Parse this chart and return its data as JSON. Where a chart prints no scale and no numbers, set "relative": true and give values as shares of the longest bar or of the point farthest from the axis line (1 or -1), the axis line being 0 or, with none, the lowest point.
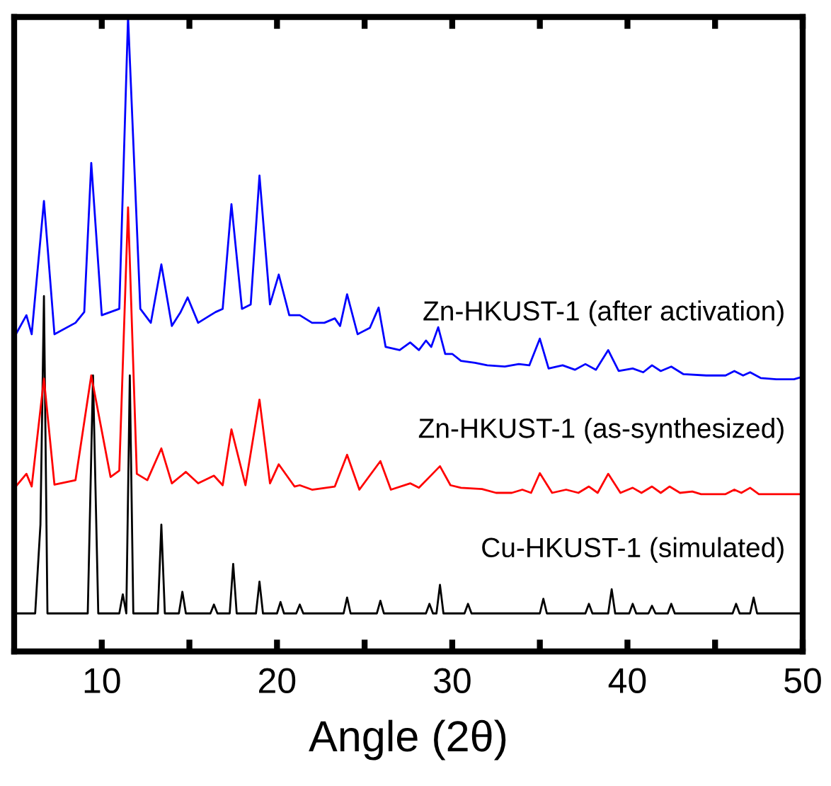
{
  "chart_data": {
    "type": "line",
    "relative": true,
    "xlabel": "Angle (2θ)",
    "xlim": [
      5,
      50
    ],
    "xticks": [
      10,
      {
        "value": 15,
        "label": null
      },
      20,
      {
        "value": 25,
        "label": null
      },
      30,
      {
        "value": 35,
        "label": null
      },
      40,
      {
        "value": 45,
        "label": null
      },
      50
    ],
    "tick_labels": "x",
    "grid": false,
    "legend": false,
    "marker": "none",
    "line_style": "solid",
    "series": [
      {
        "name": "Cu-HKUST-1 (simulated)",
        "color": "#000000",
        "x": [
          5,
          6.2,
          6.5,
          6.7,
          6.9,
          9.2,
          9.5,
          9.8,
          11.0,
          11.2,
          11.4,
          11.6,
          11.8,
          13.2,
          13.4,
          13.6,
          14.4,
          14.6,
          14.8,
          16.2,
          16.4,
          16.6,
          17.3,
          17.5,
          17.7,
          18.8,
          19.0,
          19.2,
          20.0,
          20.2,
          20.4,
          21.1,
          21.3,
          21.5,
          23.8,
          24.0,
          24.2,
          25.7,
          25.9,
          26.1,
          28.5,
          28.7,
          28.9,
          29.1,
          29.3,
          29.5,
          30.7,
          30.9,
          31.1,
          35.0,
          35.2,
          35.4,
          37.6,
          37.8,
          38.0,
          38.9,
          39.1,
          39.3,
          40.1,
          40.3,
          40.5,
          41.2,
          41.4,
          41.6,
          42.3,
          42.5,
          42.7,
          46.0,
          46.2,
          46.4,
          47.0,
          47.2,
          47.4,
          50
        ],
        "values": [
          0.06,
          0.06,
          0.2,
          0.56,
          0.06,
          0.06,
          0.435,
          0.06,
          0.06,
          0.09,
          0.06,
          0.435,
          0.06,
          0.06,
          0.2,
          0.06,
          0.06,
          0.094,
          0.06,
          0.06,
          0.074,
          0.06,
          0.06,
          0.138,
          0.06,
          0.06,
          0.11,
          0.06,
          0.06,
          0.078,
          0.06,
          0.06,
          0.074,
          0.06,
          0.06,
          0.085,
          0.06,
          0.06,
          0.08,
          0.06,
          0.06,
          0.075,
          0.06,
          0.06,
          0.105,
          0.06,
          0.06,
          0.075,
          0.06,
          0.06,
          0.083,
          0.06,
          0.06,
          0.075,
          0.06,
          0.06,
          0.098,
          0.06,
          0.06,
          0.075,
          0.06,
          0.06,
          0.072,
          0.06,
          0.06,
          0.075,
          0.06,
          0.06,
          0.075,
          0.06,
          0.06,
          0.085,
          0.06,
          0.06
        ]
      },
      {
        "name": "Zn-HKUST-1 (as-synthesized)",
        "color": "#ff0000",
        "x": [
          5,
          5.7,
          6.0,
          6.7,
          7.3,
          8.5,
          9.4,
          10.5,
          11.0,
          11.5,
          12.0,
          12.6,
          13.4,
          14.0,
          14.8,
          15.5,
          16.4,
          16.9,
          17.4,
          18.2,
          19.0,
          19.6,
          20.1,
          21.0,
          21.3,
          22.0,
          23.3,
          24.0,
          24.7,
          25.9,
          26.5,
          27.6,
          28.1,
          28.7,
          29.3,
          29.9,
          30.5,
          31.7,
          32.5,
          33.4,
          34.0,
          34.5,
          35.0,
          35.7,
          36.5,
          37.2,
          37.8,
          38.3,
          38.9,
          39.6,
          40.3,
          40.8,
          41.4,
          41.9,
          42.4,
          43.0,
          43.7,
          44.2,
          45.6,
          46.1,
          46.5,
          47.0,
          47.5,
          50
        ],
        "values": [
          0.257,
          0.28,
          0.26,
          0.43,
          0.263,
          0.27,
          0.435,
          0.275,
          0.285,
          0.7,
          0.28,
          0.27,
          0.32,
          0.265,
          0.283,
          0.265,
          0.277,
          0.262,
          0.35,
          0.262,
          0.397,
          0.265,
          0.295,
          0.26,
          0.262,
          0.255,
          0.26,
          0.31,
          0.255,
          0.3,
          0.255,
          0.265,
          0.258,
          0.275,
          0.292,
          0.262,
          0.258,
          0.256,
          0.25,
          0.25,
          0.255,
          0.25,
          0.281,
          0.25,
          0.255,
          0.25,
          0.26,
          0.25,
          0.28,
          0.25,
          0.258,
          0.25,
          0.26,
          0.25,
          0.26,
          0.25,
          0.252,
          0.248,
          0.248,
          0.255,
          0.25,
          0.258,
          0.248,
          0.248
        ]
      },
      {
        "name": "Zn-HKUST-1 (after activation)",
        "color": "#0000ff",
        "x": [
          5,
          5.7,
          6.0,
          6.7,
          7.3,
          8.5,
          9.0,
          9.4,
          10.0,
          11.0,
          11.5,
          12.2,
          12.8,
          13.4,
          14.0,
          14.5,
          14.9,
          15.5,
          16.2,
          16.5,
          16.9,
          17.4,
          18.0,
          18.5,
          19.0,
          19.6,
          20.1,
          20.7,
          21.3,
          22.0,
          22.7,
          23.3,
          23.6,
          24.0,
          24.6,
          25.3,
          25.8,
          26.2,
          27.0,
          27.6,
          28.1,
          28.5,
          28.8,
          29.2,
          29.6,
          30.0,
          30.5,
          31.3,
          32.0,
          33.0,
          33.8,
          34.4,
          35.0,
          35.5,
          36.3,
          37.0,
          37.6,
          38.2,
          38.9,
          39.5,
          40.3,
          40.9,
          41.4,
          41.9,
          42.5,
          43.2,
          44.5,
          45.6,
          46.1,
          46.6,
          47.0,
          47.6,
          48.5,
          49.5,
          50
        ],
        "values": [
          0.495,
          0.53,
          0.5,
          0.71,
          0.5,
          0.518,
          0.535,
          0.77,
          0.53,
          0.54,
          1.0,
          0.54,
          0.518,
          0.61,
          0.513,
          0.535,
          0.558,
          0.518,
          0.53,
          0.535,
          0.54,
          0.705,
          0.54,
          0.547,
          0.75,
          0.547,
          0.594,
          0.53,
          0.53,
          0.518,
          0.518,
          0.525,
          0.513,
          0.563,
          0.5,
          0.51,
          0.542,
          0.48,
          0.475,
          0.487,
          0.475,
          0.49,
          0.48,
          0.511,
          0.469,
          0.469,
          0.458,
          0.455,
          0.451,
          0.449,
          0.453,
          0.451,
          0.493,
          0.446,
          0.451,
          0.444,
          0.453,
          0.444,
          0.475,
          0.442,
          0.446,
          0.44,
          0.451,
          0.442,
          0.449,
          0.437,
          0.435,
          0.435,
          0.442,
          0.435,
          0.44,
          0.431,
          0.429,
          0.429,
          0.433
        ]
      }
    ]
  }
}
